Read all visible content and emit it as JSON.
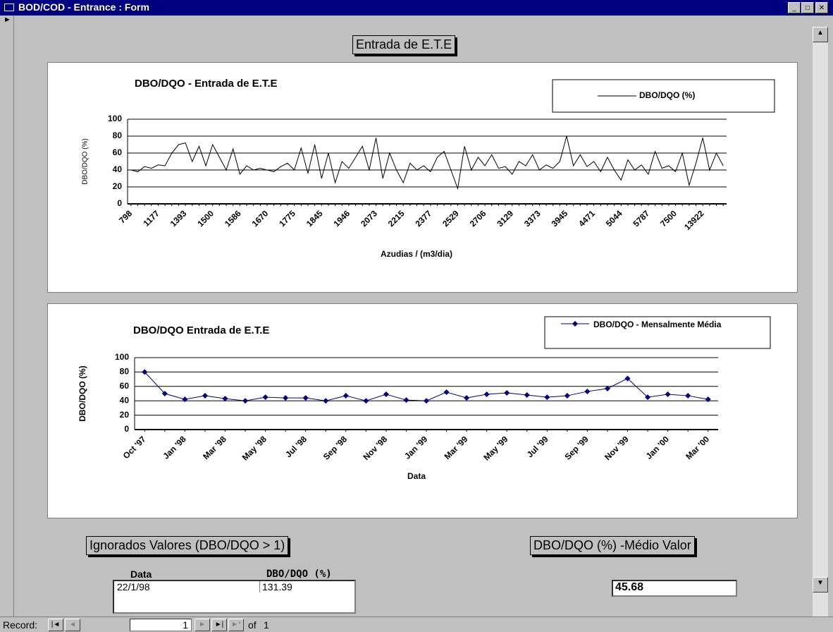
{
  "window": {
    "title": "BOD/COD - Entrance : Form"
  },
  "form": {
    "title": "Entrada de E.T.E"
  },
  "chart_data": [
    {
      "type": "line",
      "title": "DBO/DQO  - Entrada de E.T.E",
      "ylabel": "DBO/DQO (%)",
      "xlabel": "Azudias / (m3/dia)",
      "categories": [
        "798",
        null,
        null,
        null,
        "1177",
        null,
        null,
        null,
        "1393",
        null,
        null,
        null,
        "1500",
        null,
        null,
        null,
        "1586",
        null,
        null,
        null,
        "1670",
        null,
        null,
        null,
        "1775",
        null,
        null,
        null,
        "1845",
        null,
        null,
        null,
        "1946",
        null,
        null,
        null,
        "2073",
        null,
        null,
        null,
        "2215",
        null,
        null,
        null,
        "2377",
        null,
        null,
        null,
        "2529",
        null,
        null,
        null,
        "2706",
        null,
        null,
        null,
        "3129",
        null,
        null,
        null,
        "3373",
        null,
        null,
        null,
        "3945",
        null,
        null,
        null,
        "4471",
        null,
        null,
        null,
        "5044",
        null,
        null,
        null,
        "5787",
        null,
        null,
        null,
        "7500",
        null,
        null,
        null,
        "13922",
        null,
        null,
        null
      ],
      "series": [
        {
          "name": "DBO/DQO (%)",
          "color": "#000000",
          "marker": false,
          "values": [
            40,
            38,
            44,
            42,
            46,
            45,
            60,
            70,
            72,
            50,
            68,
            45,
            70,
            55,
            40,
            65,
            35,
            45,
            40,
            42,
            40,
            38,
            44,
            48,
            40,
            66,
            36,
            70,
            30,
            60,
            25,
            50,
            42,
            55,
            68,
            40,
            78,
            30,
            60,
            40,
            25,
            48,
            40,
            45,
            38,
            55,
            62,
            40,
            18,
            68,
            40,
            55,
            45,
            58,
            42,
            44,
            35,
            50,
            45,
            58,
            40,
            46,
            42,
            50,
            80,
            45,
            58,
            44,
            50,
            38,
            55,
            40,
            28,
            52,
            40,
            46,
            35,
            62,
            42,
            45,
            38,
            60,
            22,
            48,
            78,
            40,
            60,
            45
          ]
        }
      ],
      "ylim": [
        0,
        100
      ],
      "yticks": [
        0,
        20,
        40,
        60,
        80,
        100
      ],
      "grid": true
    },
    {
      "type": "line",
      "title": "DBO/DQO Entrada de E.T.E",
      "ylabel": "DBO/DQO (%)",
      "xlabel": "Data",
      "categories": [
        "Oct '97",
        null,
        "Jan '98",
        null,
        "Mar '98",
        null,
        "May '98",
        null,
        "Jul '98",
        null,
        "Sep '98",
        null,
        "Nov '98",
        null,
        "Jan '99",
        null,
        "Mar '99",
        null,
        "May '99",
        null,
        "Jul '99",
        null,
        "Sep '99",
        null,
        "Nov '99",
        null,
        "Jan '00",
        null,
        "Mar '00"
      ],
      "series": [
        {
          "name": "DBO/DQO - Mensalmente Média",
          "color": "#000080",
          "marker": true,
          "values": [
            80,
            50,
            42,
            47,
            43,
            40,
            45,
            44,
            44,
            40,
            47,
            40,
            49,
            41,
            40,
            52,
            44,
            49,
            51,
            48,
            45,
            47,
            53,
            57,
            71,
            45,
            49,
            47,
            42
          ]
        }
      ],
      "ylim": [
        0,
        100
      ],
      "yticks": [
        0,
        20,
        40,
        60,
        80,
        100
      ],
      "grid": true
    }
  ],
  "ignored": {
    "title": "Ignorados Valores (DBO/DQO > 1)",
    "columns": [
      "Data",
      "DBO/DQO (%)"
    ],
    "rows": [
      [
        "22/1/98",
        131.39
      ]
    ]
  },
  "average": {
    "title": "DBO/DQO (%) -Médio Valor",
    "value": 45.68
  },
  "record": {
    "label": "Record:",
    "current": 1,
    "of": "of",
    "total": 1
  }
}
